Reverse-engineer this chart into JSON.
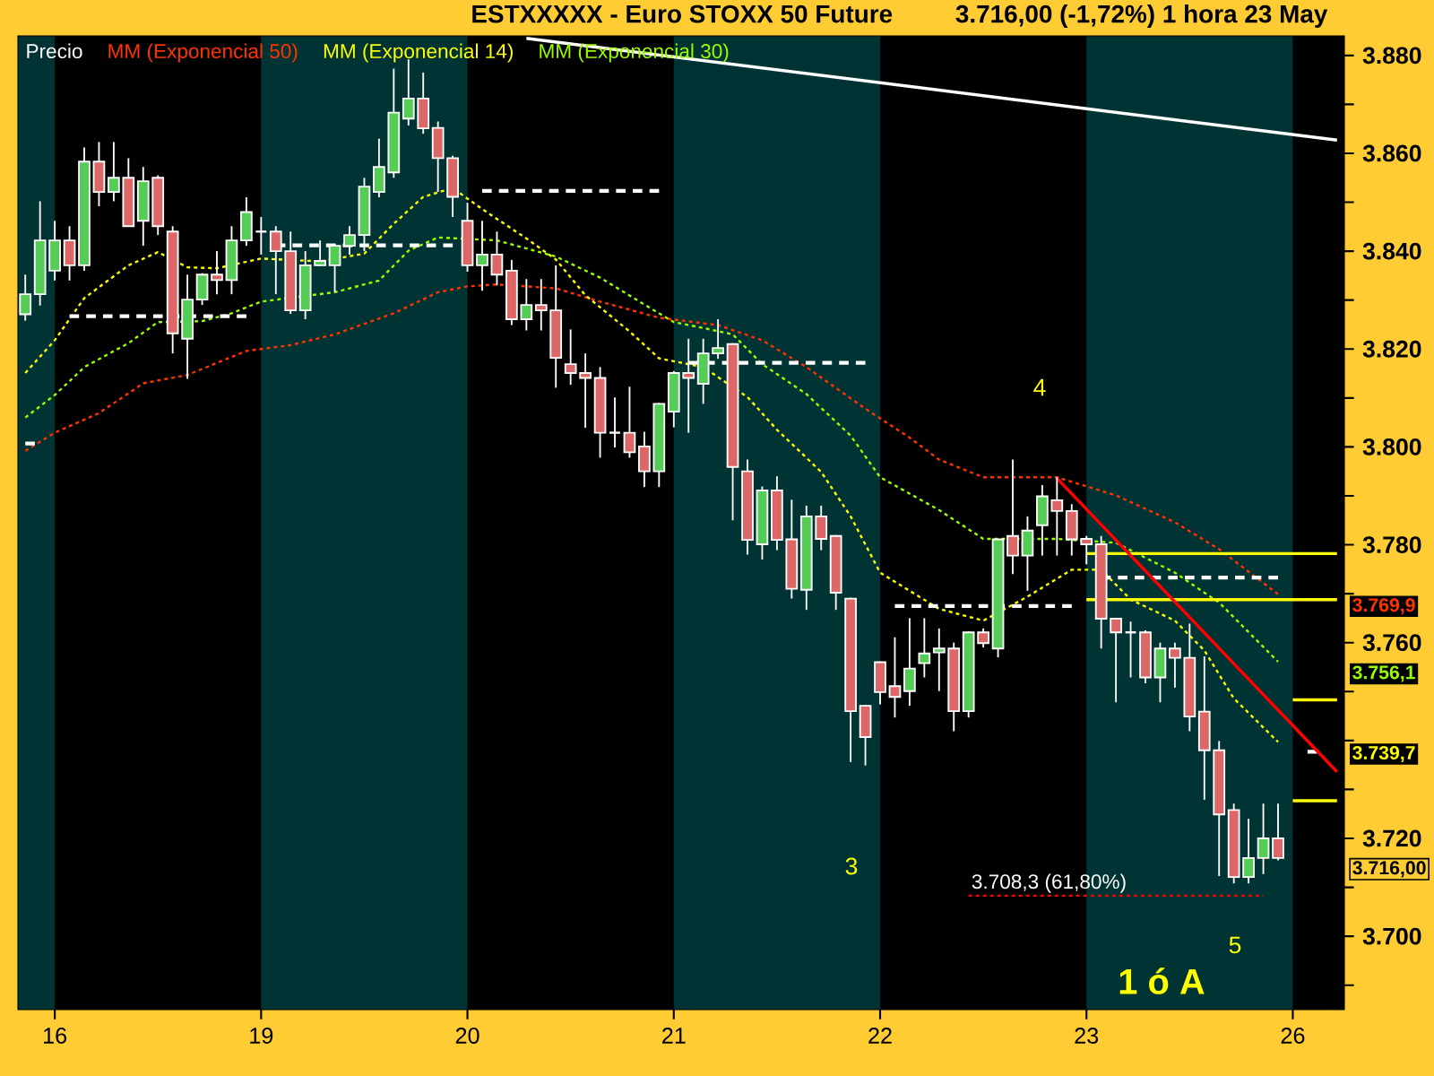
{
  "chart_data": {
    "type": "candlestick",
    "title": "ESTXXXXX - Euro STOXX 50 Future",
    "subtitle": "3.716,00 (-1,72%)    1 hora  23 May",
    "legend": "top left",
    "ylim": [
      3685,
      3884
    ],
    "categories": [
      null,
      null,
      "16",
      null,
      null,
      null,
      null,
      null,
      null,
      null,
      null,
      null,
      null,
      null,
      null,
      null,
      "19",
      null,
      null,
      null,
      null,
      null,
      null,
      null,
      null,
      null,
      null,
      null,
      null,
      null,
      "20",
      null,
      null,
      null,
      null,
      null,
      null,
      null,
      null,
      null,
      null,
      null,
      null,
      null,
      "21",
      null,
      null,
      null,
      null,
      null,
      null,
      null,
      null,
      null,
      null,
      null,
      null,
      null,
      "22",
      null,
      null,
      null,
      null,
      null,
      null,
      null,
      null,
      null,
      null,
      null,
      null,
      null,
      "23",
      null,
      null,
      null,
      null,
      null,
      null,
      null,
      null,
      null,
      null,
      null,
      null,
      null,
      "26",
      null,
      null,
      null
    ],
    "yticks": [
      {
        "value": 3690,
        "label": null
      },
      {
        "value": 3700,
        "label": "3.700"
      },
      {
        "value": 3710,
        "label": null
      },
      {
        "value": 3720,
        "label": "3.720"
      },
      {
        "value": 3730,
        "label": null
      },
      {
        "value": 3740,
        "label": null
      },
      {
        "value": 3750,
        "label": null
      },
      {
        "value": 3760,
        "label": "3.760"
      },
      {
        "value": 3770,
        "label": null
      },
      {
        "value": 3780,
        "label": "3.780"
      },
      {
        "value": 3790,
        "label": null
      },
      {
        "value": 3800,
        "label": "3.800"
      },
      {
        "value": 3810,
        "label": null
      },
      {
        "value": 3820,
        "label": "3.820"
      },
      {
        "value": 3830,
        "label": null
      },
      {
        "value": 3840,
        "label": "3.840"
      },
      {
        "value": 3850,
        "label": null
      },
      {
        "value": 3860,
        "label": "3.860"
      },
      {
        "value": 3870,
        "label": null
      },
      {
        "value": 3880,
        "label": "3.880"
      }
    ],
    "series": [
      {
        "name": "Precio",
        "color": "#ffffff",
        "ohlc": [
          [
            3827.1,
            3835.2,
            3825.8,
            3831.2
          ],
          [
            3831.2,
            3850.2,
            3828.9,
            3842.2
          ],
          [
            3836.0,
            3846.2,
            3834.0,
            3842.2
          ],
          [
            3842.2,
            3845.1,
            3834.0,
            3837.1
          ],
          [
            3837.1,
            3861.2,
            3836.0,
            3858.3
          ],
          [
            3858.3,
            3862.3,
            3849.2,
            3852.1
          ],
          [
            3852.1,
            3862.3,
            3850.2,
            3855.0
          ],
          [
            3855.0,
            3859.0,
            3845.0,
            3845.1
          ],
          [
            3846.2,
            3857.2,
            3841.1,
            3854.3
          ],
          [
            3855.0,
            3855.5,
            3843.3,
            3845.1
          ],
          [
            3844.0,
            3845.1,
            3819.1,
            3823.2
          ],
          [
            3822.1,
            3835.2,
            3813.9,
            3830.1
          ],
          [
            3830.1,
            3835.5,
            3829.0,
            3835.2
          ],
          [
            3835.2,
            3840.0,
            3831.2,
            3834.1
          ],
          [
            3834.1,
            3845.1,
            3831.2,
            3842.2
          ],
          [
            3842.2,
            3851.0,
            3841.1,
            3848.0
          ],
          [
            3844.0,
            3847.0,
            3839.3,
            3844.0
          ],
          [
            3844.0,
            3845.1,
            3831.2,
            3840.0
          ],
          [
            3840.0,
            3844.0,
            3827.2,
            3827.9
          ],
          [
            3827.9,
            3840.0,
            3826.1,
            3837.1
          ],
          [
            3837.1,
            3842.2,
            3837.0,
            3838.0
          ],
          [
            3837.1,
            3841.5,
            3831.6,
            3841.1
          ],
          [
            3841.1,
            3845.1,
            3839.3,
            3843.3
          ],
          [
            3843.3,
            3855.0,
            3840.0,
            3853.2
          ],
          [
            3852.1,
            3863.0,
            3851.0,
            3857.2
          ],
          [
            3856.1,
            3877.3,
            3855.0,
            3868.3
          ],
          [
            3867.1,
            3879.2,
            3865.7,
            3871.2
          ],
          [
            3871.2,
            3876.5,
            3864.0,
            3865.1
          ],
          [
            3865.2,
            3866.5,
            3852.1,
            3859.0
          ],
          [
            3859.0,
            3859.5,
            3847.0,
            3851.1
          ],
          [
            3846.2,
            3849.9,
            3835.8,
            3837.1
          ],
          [
            3837.1,
            3846.2,
            3831.9,
            3839.3
          ],
          [
            3839.3,
            3844.0,
            3833.0,
            3835.2
          ],
          [
            3836.0,
            3838.2,
            3824.9,
            3826.1
          ],
          [
            3826.1,
            3834.3,
            3823.8,
            3829.0
          ],
          [
            3829.0,
            3834.3,
            3823.8,
            3827.9
          ],
          [
            3827.9,
            3837.1,
            3812.1,
            3818.2
          ],
          [
            3816.9,
            3824.0,
            3812.7,
            3815.1
          ],
          [
            3815.1,
            3819.1,
            3803.9,
            3814.1
          ],
          [
            3814.1,
            3816.3,
            3797.8,
            3802.9
          ],
          [
            3802.9,
            3810.1,
            3799.9,
            3802.9
          ],
          [
            3802.9,
            3812.3,
            3797.8,
            3798.9
          ],
          [
            3800.1,
            3803.1,
            3791.8,
            3795.0
          ],
          [
            3795.0,
            3809.0,
            3791.8,
            3808.8
          ],
          [
            3807.2,
            3815.5,
            3804.0,
            3815.1
          ],
          [
            3815.1,
            3822.1,
            3802.9,
            3814.1
          ],
          [
            3812.9,
            3822.1,
            3808.8,
            3819.1
          ],
          [
            3819.1,
            3826.1,
            3818.0,
            3820.2
          ],
          [
            3821.0,
            3821.2,
            3785.0,
            3795.9
          ],
          [
            3795.0,
            3797.4,
            3778.0,
            3781.0
          ],
          [
            3780.1,
            3791.9,
            3777.0,
            3791.1
          ],
          [
            3791.1,
            3794.0,
            3778.9,
            3781.0
          ],
          [
            3781.1,
            3789.2,
            3769.0,
            3771.0
          ],
          [
            3770.8,
            3788.0,
            3766.7,
            3785.8
          ],
          [
            3785.8,
            3788.0,
            3778.9,
            3781.2
          ],
          [
            3781.8,
            3782.0,
            3766.7,
            3770.2
          ],
          [
            3769.0,
            3769.2,
            3735.6,
            3746.0
          ],
          [
            3747.1,
            3747.2,
            3734.9,
            3740.7
          ],
          [
            3756.0,
            3756.2,
            3747.4,
            3749.9
          ],
          [
            3751.1,
            3761.1,
            3744.7,
            3748.9
          ],
          [
            3750.1,
            3765.0,
            3747.1,
            3754.7
          ],
          [
            3755.8,
            3765.0,
            3752.9,
            3757.8
          ],
          [
            3758.0,
            3762.9,
            3750.1,
            3758.8
          ],
          [
            3758.8,
            3760.0,
            3741.9,
            3746.0
          ],
          [
            3746.0,
            3762.3,
            3744.7,
            3762.1
          ],
          [
            3762.1,
            3762.9,
            3759.0,
            3759.9
          ],
          [
            3758.8,
            3781.2,
            3757.0,
            3781.1
          ],
          [
            3781.8,
            3797.4,
            3774.0,
            3777.8
          ],
          [
            3777.8,
            3785.8,
            3770.6,
            3782.9
          ],
          [
            3784.0,
            3792.2,
            3777.8,
            3789.9
          ],
          [
            3789.1,
            3793.8,
            3777.8,
            3786.9
          ],
          [
            3786.9,
            3788.3,
            3777.8,
            3781.1
          ],
          [
            3781.2,
            3781.8,
            3776.0,
            3780.1
          ],
          [
            3780.1,
            3781.8,
            3758.8,
            3764.9
          ],
          [
            3764.9,
            3765.0,
            3747.8,
            3762.1
          ],
          [
            3762.1,
            3764.3,
            3752.9,
            3762.1
          ],
          [
            3762.1,
            3762.5,
            3751.7,
            3752.9
          ],
          [
            3752.9,
            3760.0,
            3747.8,
            3758.8
          ],
          [
            3758.8,
            3760.0,
            3750.8,
            3756.9
          ],
          [
            3756.9,
            3763.9,
            3741.9,
            3744.9
          ],
          [
            3745.9,
            3757.2,
            3727.9,
            3738.0
          ],
          [
            3738.0,
            3739.9,
            3712.3,
            3724.9
          ],
          [
            3725.8,
            3727.1,
            3710.8,
            3712.1
          ],
          [
            3712.1,
            3724.0,
            3710.8,
            3716.0
          ],
          [
            3716.0,
            3727.1,
            3712.7,
            3720.0
          ],
          [
            3720.0,
            3727.1,
            3715.5,
            3716.0
          ],
          null,
          null,
          null,
          null
        ],
        "value_labels": [
          null,
          null,
          null,
          null,
          null,
          null,
          null,
          null,
          null,
          null,
          null,
          null,
          null,
          null,
          null,
          null,
          null,
          null,
          null,
          null,
          null,
          null,
          null,
          null,
          null,
          null,
          null,
          null,
          null,
          null,
          null,
          null,
          null,
          null,
          null,
          null,
          null,
          null,
          null,
          null,
          null,
          null,
          null,
          null,
          null,
          null,
          null,
          null,
          null,
          null,
          null,
          null,
          null,
          null,
          null,
          null,
          null,
          null,
          null,
          null,
          null,
          null,
          null,
          null,
          null,
          null,
          null,
          null,
          null,
          null,
          null,
          null,
          null,
          null,
          null,
          null,
          null,
          null,
          null,
          null,
          null,
          null,
          null,
          null,
          null,
          "3.716,00",
          null,
          null,
          null,
          null
        ]
      },
      {
        "name": "MM (Exponencial 50)",
        "type": "line",
        "color": "#ff3300",
        "line_style": "dotted",
        "values": [
          3799.2,
          null,
          3802.9,
          null,
          null,
          3806.9,
          null,
          null,
          3813.0,
          null,
          null,
          3814.7,
          null,
          null,
          null,
          3819.6,
          null,
          null,
          3820.8,
          null,
          null,
          3823.0,
          null,
          null,
          null,
          3827.3,
          null,
          null,
          3831.6,
          null,
          3832.8,
          null,
          3833.2,
          null,
          null,
          null,
          3832.4,
          null,
          null,
          3829.7,
          null,
          null,
          null,
          3826.4,
          null,
          null,
          null,
          3824.9,
          null,
          null,
          3821.8,
          null,
          null,
          3816.3,
          null,
          null,
          null,
          3807.8,
          null,
          null,
          3801.9,
          null,
          3797.4,
          null,
          null,
          3793.8,
          null,
          null,
          null,
          null,
          3793.8,
          null,
          null,
          null,
          3790.1,
          null,
          null,
          null,
          3784.6,
          null,
          null,
          3779.1,
          null,
          null,
          null,
          3769.9,
          null,
          null,
          null,
          null
        ]
      },
      {
        "name": "MM (Exponencial 14)",
        "type": "line",
        "color": "#ffff00",
        "line_style": "dotted",
        "values": [
          3815.1,
          null,
          3821.8,
          null,
          3830.4,
          null,
          null,
          3837.1,
          null,
          3839.8,
          null,
          3836.7,
          null,
          3836.5,
          null,
          null,
          3838.5,
          null,
          null,
          null,
          3837.9,
          null,
          null,
          3839.5,
          null,
          3845.6,
          null,
          3851.1,
          null,
          3852.9,
          null,
          3848.6,
          null,
          null,
          3842.6,
          null,
          3838.3,
          null,
          3831.0,
          null,
          null,
          3823.6,
          null,
          3818.1,
          null,
          null,
          3816.3,
          null,
          null,
          3810.2,
          null,
          3803.5,
          null,
          null,
          3794.9,
          null,
          3785.8,
          null,
          3774.3,
          null,
          null,
          null,
          3766.9,
          null,
          null,
          3764.5,
          null,
          null,
          3769.4,
          null,
          null,
          3774.9,
          null,
          3774.9,
          null,
          3768.8,
          null,
          null,
          3764.5,
          null,
          3758.4,
          null,
          3748.6,
          null,
          null,
          3739.7,
          null,
          null,
          null,
          null
        ]
      },
      {
        "name": "MM (Exponencial 30)",
        "type": "line",
        "color": "#99ff00",
        "line_style": "dotted",
        "values": [
          3806.0,
          null,
          3810.6,
          null,
          3816.3,
          null,
          null,
          3821.2,
          null,
          3825.5,
          null,
          null,
          3825.7,
          null,
          3827.3,
          null,
          3829.7,
          null,
          null,
          null,
          null,
          3831.6,
          null,
          null,
          3834.0,
          null,
          3840.1,
          null,
          3842.8,
          null,
          null,
          null,
          3842.2,
          null,
          null,
          null,
          3838.9,
          null,
          null,
          3834.6,
          null,
          null,
          3829.1,
          null,
          3825.5,
          null,
          3824.3,
          null,
          3823.0,
          null,
          3816.9,
          null,
          null,
          3810.8,
          null,
          null,
          3802.3,
          null,
          3793.8,
          null,
          null,
          null,
          3787.1,
          null,
          null,
          3781.2,
          null,
          null,
          null,
          null,
          3781.2,
          null,
          null,
          null,
          3780.4,
          null,
          null,
          null,
          3774.3,
          null,
          null,
          3768.2,
          null,
          null,
          null,
          3756.1,
          null,
          null,
          null,
          null
        ]
      },
      {
        "type": "step",
        "color": "#ffffff",
        "line_style": "dashed",
        "values": [
          3800.7,
          3800.7,
          null,
          3826.7,
          3826.7,
          3826.7,
          3826.7,
          3826.7,
          3826.7,
          3826.7,
          3826.7,
          3826.7,
          3826.7,
          3826.7,
          3826.7,
          3826.7,
          null,
          3841.2,
          3841.2,
          3841.2,
          3841.2,
          3841.2,
          3841.2,
          3841.2,
          3841.2,
          3841.2,
          3841.2,
          3841.2,
          3841.2,
          3841.2,
          null,
          3852.3,
          3852.3,
          3852.3,
          3852.3,
          3852.3,
          3852.3,
          3852.3,
          3852.3,
          3852.3,
          3852.3,
          3852.3,
          3852.3,
          3852.3,
          null,
          3817.2,
          3817.2,
          3817.2,
          3817.2,
          3817.2,
          3817.2,
          3817.2,
          3817.2,
          3817.2,
          3817.2,
          3817.2,
          3817.2,
          3817.2,
          null,
          3767.5,
          3767.5,
          3767.5,
          3767.5,
          3767.5,
          3767.5,
          3767.5,
          3767.5,
          3767.5,
          3767.5,
          3767.5,
          3767.5,
          3767.5,
          null,
          3773.3,
          3773.3,
          3773.3,
          3773.3,
          3773.3,
          3773.3,
          3773.3,
          3773.3,
          3773.3,
          3773.3,
          3773.3,
          3773.3,
          3773.3,
          null,
          3737.7,
          3737.7,
          null
        ]
      },
      {
        "type": "step",
        "color": "#ffff00",
        "line_style": "solid",
        "values": [
          null,
          null,
          null,
          null,
          null,
          null,
          null,
          null,
          null,
          null,
          null,
          null,
          null,
          null,
          null,
          null,
          null,
          null,
          null,
          null,
          null,
          null,
          null,
          null,
          null,
          null,
          null,
          null,
          null,
          null,
          null,
          null,
          null,
          null,
          null,
          null,
          null,
          null,
          null,
          null,
          null,
          null,
          null,
          null,
          null,
          null,
          null,
          null,
          null,
          null,
          null,
          null,
          null,
          null,
          null,
          null,
          null,
          null,
          null,
          null,
          null,
          null,
          null,
          null,
          null,
          null,
          null,
          null,
          null,
          null,
          null,
          null,
          3778.2,
          3778.2,
          3778.2,
          3778.2,
          3778.2,
          3778.2,
          3778.2,
          3778.2,
          3778.2,
          3778.2,
          3778.2,
          3778.2,
          3778.2,
          3778.2,
          3778.2,
          3778.2,
          3778.2,
          3778.2
        ]
      },
      {
        "type": "step",
        "color": "#ffff00",
        "line_style": "solid",
        "values": [
          null,
          null,
          null,
          null,
          null,
          null,
          null,
          null,
          null,
          null,
          null,
          null,
          null,
          null,
          null,
          null,
          null,
          null,
          null,
          null,
          null,
          null,
          null,
          null,
          null,
          null,
          null,
          null,
          null,
          null,
          null,
          null,
          null,
          null,
          null,
          null,
          null,
          null,
          null,
          null,
          null,
          null,
          null,
          null,
          null,
          null,
          null,
          null,
          null,
          null,
          null,
          null,
          null,
          null,
          null,
          null,
          null,
          null,
          null,
          null,
          null,
          null,
          null,
          null,
          null,
          null,
          null,
          null,
          null,
          null,
          null,
          null,
          3768.8,
          3768.8,
          3768.8,
          3768.8,
          3768.8,
          3768.8,
          3768.8,
          3768.8,
          3768.8,
          3768.8,
          3768.8,
          3768.8,
          3768.8,
          3768.8,
          3768.8,
          3768.8,
          3768.8,
          3768.8
        ]
      },
      {
        "type": "step",
        "color": "#ffff00",
        "line_style": "solid",
        "values": [
          null,
          null,
          null,
          null,
          null,
          null,
          null,
          null,
          null,
          null,
          null,
          null,
          null,
          null,
          null,
          null,
          null,
          null,
          null,
          null,
          null,
          null,
          null,
          null,
          null,
          null,
          null,
          null,
          null,
          null,
          null,
          null,
          null,
          null,
          null,
          null,
          null,
          null,
          null,
          null,
          null,
          null,
          null,
          null,
          null,
          null,
          null,
          null,
          null,
          null,
          null,
          null,
          null,
          null,
          null,
          null,
          null,
          null,
          null,
          null,
          null,
          null,
          null,
          null,
          null,
          null,
          null,
          null,
          null,
          null,
          null,
          null,
          null,
          null,
          null,
          null,
          null,
          null,
          null,
          null,
          null,
          null,
          null,
          null,
          null,
          null,
          3748.3,
          3748.3,
          3748.3,
          3748.3
        ]
      },
      {
        "type": "step",
        "color": "#ffff00",
        "line_style": "solid",
        "values": [
          null,
          null,
          null,
          null,
          null,
          null,
          null,
          null,
          null,
          null,
          null,
          null,
          null,
          null,
          null,
          null,
          null,
          null,
          null,
          null,
          null,
          null,
          null,
          null,
          null,
          null,
          null,
          null,
          null,
          null,
          null,
          null,
          null,
          null,
          null,
          null,
          null,
          null,
          null,
          null,
          null,
          null,
          null,
          null,
          null,
          null,
          null,
          null,
          null,
          null,
          null,
          null,
          null,
          null,
          null,
          null,
          null,
          null,
          null,
          null,
          null,
          null,
          null,
          null,
          null,
          null,
          null,
          null,
          null,
          null,
          null,
          null,
          null,
          null,
          null,
          null,
          null,
          null,
          null,
          null,
          null,
          null,
          null,
          null,
          null,
          null,
          3727.7,
          3727.7,
          3727.7,
          3727.7
        ]
      },
      {
        "type": "line",
        "color": "#ffffff",
        "line_style": "solid",
        "values": [
          null,
          null,
          null,
          null,
          null,
          null,
          null,
          null,
          null,
          null,
          null,
          null,
          null,
          null,
          null,
          null,
          null,
          null,
          null,
          null,
          null,
          null,
          null,
          null,
          null,
          null,
          null,
          null,
          null,
          null,
          null,
          null,
          null,
          null,
          3883.5,
          null,
          null,
          null,
          null,
          null,
          null,
          null,
          null,
          null,
          null,
          null,
          null,
          null,
          null,
          null,
          null,
          null,
          null,
          null,
          null,
          null,
          null,
          null,
          null,
          null,
          null,
          null,
          null,
          null,
          null,
          null,
          null,
          null,
          null,
          null,
          null,
          null,
          null,
          null,
          null,
          null,
          null,
          null,
          null,
          null,
          null,
          null,
          null,
          null,
          null,
          null,
          null,
          null,
          null,
          3862.7
        ]
      },
      {
        "type": "line",
        "color": "#ff0000",
        "line_style": "solid",
        "values": [
          null,
          null,
          null,
          null,
          null,
          null,
          null,
          null,
          null,
          null,
          null,
          null,
          null,
          null,
          null,
          null,
          null,
          null,
          null,
          null,
          null,
          null,
          null,
          null,
          null,
          null,
          null,
          null,
          null,
          null,
          null,
          null,
          null,
          null,
          null,
          null,
          null,
          null,
          null,
          null,
          null,
          null,
          null,
          null,
          null,
          null,
          null,
          null,
          null,
          null,
          null,
          null,
          null,
          null,
          null,
          null,
          null,
          null,
          null,
          null,
          null,
          null,
          null,
          null,
          null,
          null,
          null,
          null,
          null,
          null,
          3793.6,
          null,
          null,
          null,
          null,
          null,
          null,
          null,
          null,
          null,
          null,
          null,
          null,
          null,
          null,
          null,
          null,
          null,
          null,
          3733.6
        ]
      },
      {
        "type": "line",
        "color": "#ff0000",
        "line_style": "dotted",
        "values": [
          null,
          null,
          null,
          null,
          null,
          null,
          null,
          null,
          null,
          null,
          null,
          null,
          null,
          null,
          null,
          null,
          null,
          null,
          null,
          null,
          null,
          null,
          null,
          null,
          null,
          null,
          null,
          null,
          null,
          null,
          null,
          null,
          null,
          null,
          null,
          null,
          null,
          null,
          null,
          null,
          null,
          null,
          null,
          null,
          null,
          null,
          null,
          null,
          null,
          null,
          null,
          null,
          null,
          null,
          null,
          null,
          null,
          null,
          null,
          null,
          null,
          null,
          null,
          null,
          3708.3,
          null,
          null,
          null,
          null,
          null,
          null,
          null,
          null,
          null,
          null,
          null,
          null,
          null,
          null,
          null,
          null,
          null,
          null,
          null,
          3708.3,
          null,
          null,
          null,
          null,
          null
        ],
        "value_labels": [
          null,
          null,
          null,
          null,
          null,
          null,
          null,
          null,
          null,
          null,
          null,
          null,
          null,
          null,
          null,
          null,
          null,
          null,
          null,
          null,
          null,
          null,
          null,
          null,
          null,
          null,
          null,
          null,
          null,
          null,
          null,
          null,
          null,
          null,
          null,
          null,
          null,
          null,
          null,
          null,
          null,
          null,
          null,
          null,
          null,
          null,
          null,
          null,
          null,
          null,
          null,
          null,
          null,
          null,
          null,
          null,
          null,
          null,
          null,
          null,
          null,
          null,
          null,
          null,
          "3.708,3 (61,80%)",
          null,
          null,
          null,
          null,
          null,
          null,
          null,
          null,
          null,
          null,
          null,
          null,
          null,
          null,
          null,
          null,
          null,
          null,
          null,
          null,
          null,
          null,
          null,
          null,
          null
        ]
      }
    ],
    "annotations": [
      "3",
      "4",
      "5",
      "1 ó A",
      "3.769,9",
      "3.756,1",
      "3.739,7"
    ]
  }
}
